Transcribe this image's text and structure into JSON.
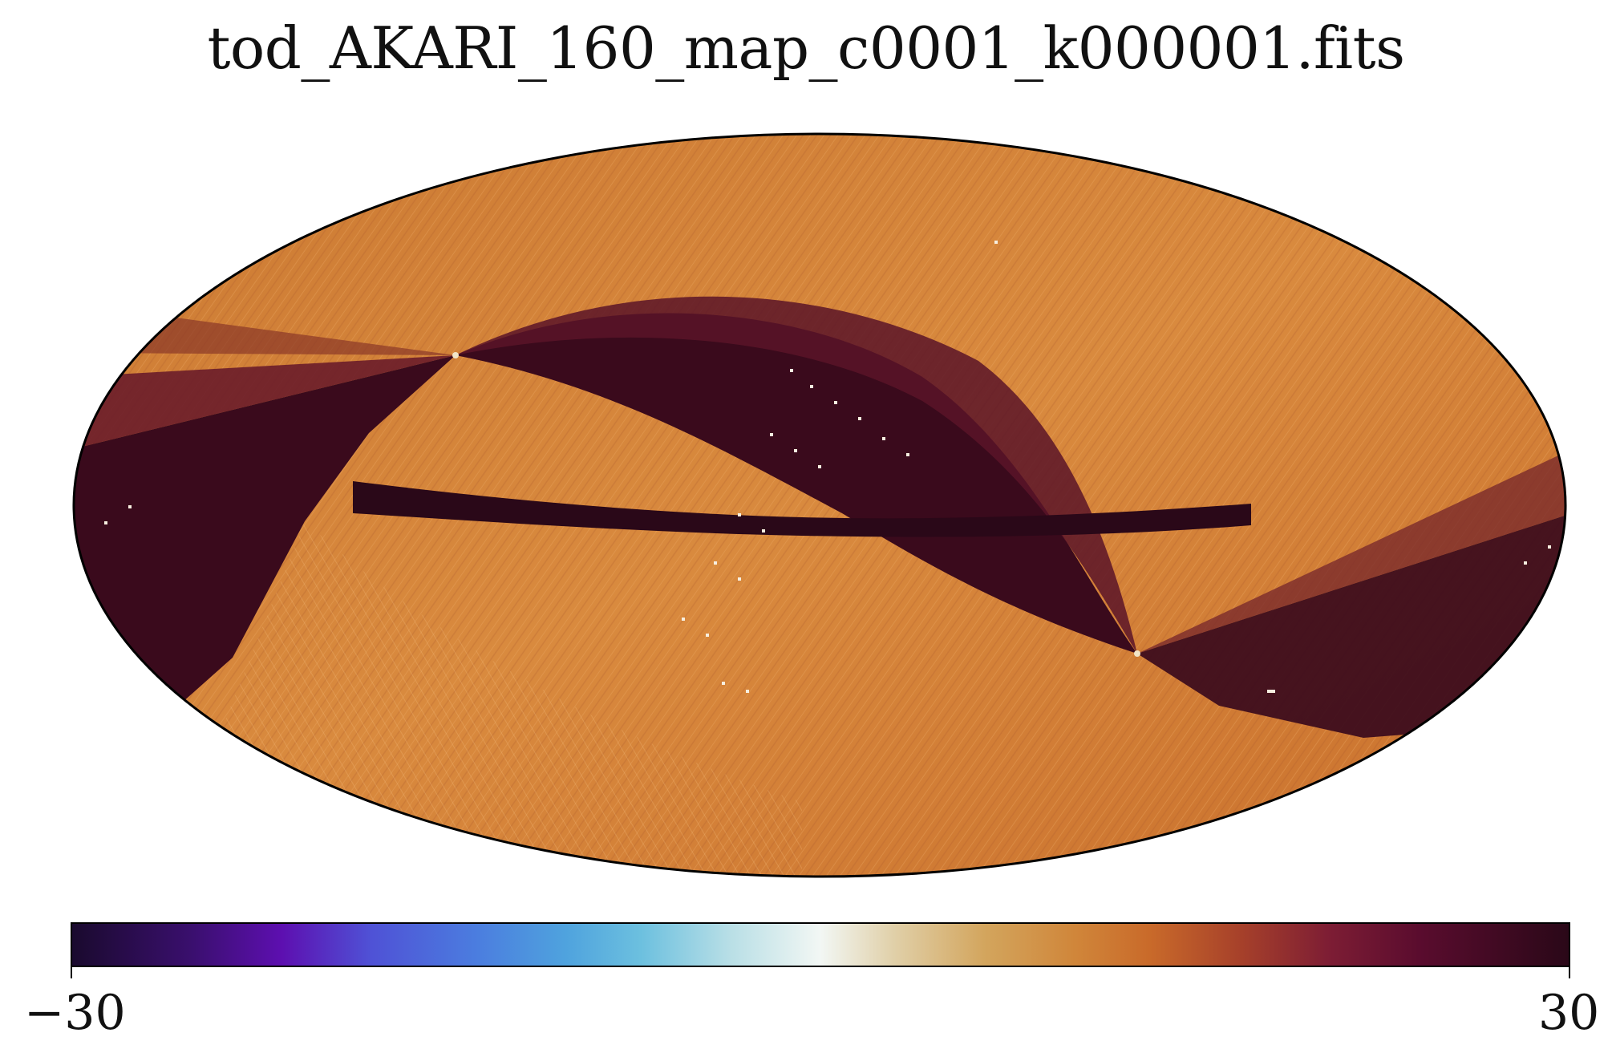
{
  "chart_data": {
    "type": "heatmap",
    "title": "tod_AKARI_160_map_c0001_k000001.fits",
    "projection": "mollweide",
    "colorbar": {
      "vmin": -30,
      "vmax": 30,
      "min_label": "−30",
      "max_label": "30",
      "colormap_stops": [
        "#1a0a2e",
        "#5d0fb0",
        "#4b7ddf",
        "#6cc0df",
        "#f2f7f4",
        "#d3a55d",
        "#c96a2a",
        "#7d1d34",
        "#2a0818"
      ]
    },
    "colors": {
      "background_field": "#c8772e",
      "dark_band": "#3a0a1c",
      "mid_band": "#7a2a2c",
      "highlight": "#f2e6c8"
    }
  }
}
